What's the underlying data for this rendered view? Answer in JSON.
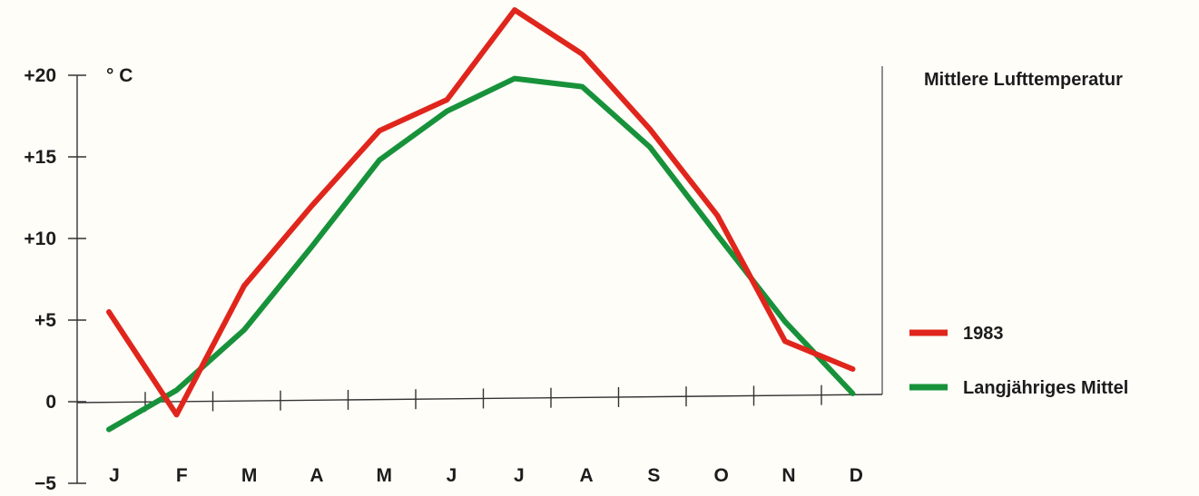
{
  "chart_data": {
    "type": "line",
    "title": "Mittlere Lufttemperatur",
    "ylabel": "° C",
    "xlabel": "",
    "categories": [
      "J",
      "F",
      "M",
      "A",
      "M",
      "J",
      "J",
      "A",
      "S",
      "O",
      "N",
      "D"
    ],
    "yticks": [
      "+20",
      "+15",
      "+10",
      "+5",
      "0",
      "−5"
    ],
    "ylim": [
      -5,
      20
    ],
    "grid": false,
    "legend_position": "right",
    "series": [
      {
        "name": "1983",
        "color": "#e0261c",
        "values": [
          5.5,
          -0.8,
          7.1,
          12.0,
          16.6,
          18.5,
          24.0,
          21.3,
          16.7,
          11.4,
          3.7,
          2.0
        ]
      },
      {
        "name": "Langjähriges Mittel",
        "color": "#17923a",
        "values": [
          -1.7,
          0.7,
          4.4,
          9.5,
          14.8,
          17.8,
          19.8,
          19.3,
          15.6,
          10.2,
          4.9,
          0.5
        ]
      }
    ]
  }
}
